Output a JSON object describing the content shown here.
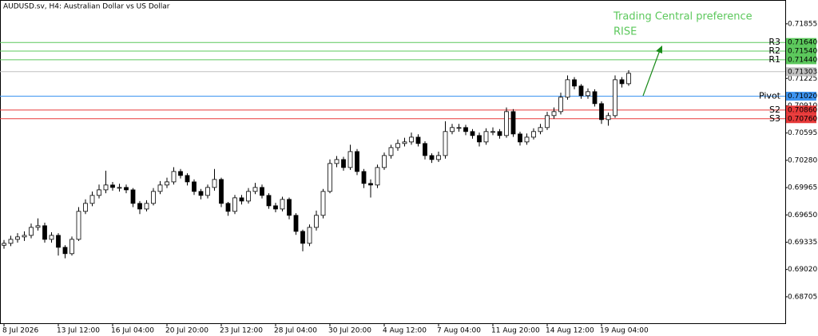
{
  "chart_data": {
    "type": "candlestick",
    "title": "AUDUSD.sv, H4:  Australian Dollar vs US Dollar",
    "annotations": [
      "Trading Central preference",
      "RISE"
    ],
    "annotation_color": "#5cc85c",
    "categories": [
      "8 Jul 2026",
      null,
      null,
      null,
      null,
      null,
      null,
      null,
      "13 Jul 12:00",
      null,
      null,
      null,
      null,
      null,
      null,
      null,
      "16 Jul 04:00",
      null,
      null,
      null,
      null,
      null,
      null,
      null,
      "20 Jul 20:00",
      null,
      null,
      null,
      null,
      null,
      null,
      null,
      "23 Jul 12:00",
      null,
      null,
      null,
      null,
      null,
      null,
      null,
      "28 Jul 04:00",
      null,
      null,
      null,
      null,
      null,
      null,
      null,
      "30 Jul 20:00",
      null,
      null,
      null,
      null,
      null,
      null,
      null,
      "4 Aug 12:00",
      null,
      null,
      null,
      null,
      null,
      null,
      null,
      "7 Aug 04:00",
      null,
      null,
      null,
      null,
      null,
      null,
      null,
      "11 Aug 20:00",
      null,
      null,
      null,
      null,
      null,
      null,
      null,
      "14 Aug 12:00",
      null,
      null,
      null,
      null,
      null,
      null,
      null,
      "19 Aug 04:00",
      null,
      null,
      null,
      null
    ],
    "open": [
      0.693,
      0.69322,
      0.69368,
      0.69396,
      0.69414,
      0.69506,
      0.69525,
      0.69368,
      0.69414,
      0.69276,
      0.69203,
      0.69368,
      0.69691,
      0.69783,
      0.69875,
      0.69939,
      0.69995,
      0.69967,
      0.69967,
      0.69939,
      0.69783,
      0.69718,
      0.69783,
      0.69921,
      0.69995,
      0.70031,
      0.70151,
      0.70105,
      0.70031,
      0.69921,
      0.69875,
      0.69967,
      0.70059,
      0.69783,
      0.69691,
      0.69847,
      0.6981,
      0.69921,
      0.69967,
      0.69875,
      0.69755,
      0.69718,
      0.69829,
      0.69645,
      0.6946,
      0.69322,
      0.69506,
      0.69645,
      0.69921,
      0.70243,
      0.70289,
      0.70197,
      0.70381,
      0.70151,
      0.70013,
      0.69995,
      0.70197,
      0.70335,
      0.70427,
      0.70474,
      0.70492,
      0.70547,
      0.70474,
      0.70335,
      0.70289,
      0.70335,
      0.70612,
      0.70658,
      0.70658,
      0.70612,
      0.70566,
      0.70492,
      0.70612,
      0.70612,
      0.70566,
      0.70842,
      0.70584,
      0.70492,
      0.70547,
      0.70612,
      0.70658,
      0.70796,
      0.70842,
      0.71008,
      0.7121,
      0.71137,
      0.71026,
      0.71072,
      0.70934,
      0.7075,
      0.70796,
      0.7121,
      0.71164
    ],
    "high": [
      0.6936,
      0.6941,
      0.6944,
      0.6946,
      0.6955,
      0.6961,
      0.6956,
      0.6945,
      0.6944,
      0.693,
      0.694,
      0.6974,
      0.6983,
      0.6992,
      0.7,
      0.7016,
      0.7003,
      0.7001,
      0.7,
      0.6996,
      0.6981,
      0.6982,
      0.6996,
      0.7004,
      0.7008,
      0.702,
      0.7018,
      0.7013,
      0.7006,
      0.6995,
      0.7,
      0.7018,
      0.7008,
      0.698,
      0.6988,
      0.6988,
      0.6996,
      0.7002,
      0.7,
      0.699,
      0.6979,
      0.6986,
      0.6985,
      0.6967,
      0.6948,
      0.6954,
      0.697,
      0.6995,
      0.7029,
      0.7033,
      0.7032,
      0.7046,
      0.7041,
      0.7018,
      0.7006,
      0.7023,
      0.7037,
      0.7046,
      0.7052,
      0.7054,
      0.706,
      0.7058,
      0.705,
      0.7036,
      0.7038,
      0.7073,
      0.707,
      0.707,
      0.7069,
      0.7064,
      0.706,
      0.7065,
      0.7066,
      0.7064,
      0.7089,
      0.7087,
      0.7061,
      0.7059,
      0.7065,
      0.707,
      0.7084,
      0.7089,
      0.7106,
      0.7126,
      0.7124,
      0.7116,
      0.7111,
      0.711,
      0.7096,
      0.7083,
      0.7126,
      0.7124,
      0.7132
    ],
    "low": [
      0.6926,
      0.6929,
      0.6933,
      0.6935,
      0.6938,
      0.6947,
      0.6933,
      0.6933,
      0.6918,
      0.6915,
      0.6918,
      0.6935,
      0.6966,
      0.6975,
      0.6984,
      0.699,
      0.6993,
      0.6992,
      0.699,
      0.6974,
      0.6966,
      0.6969,
      0.6976,
      0.6989,
      0.6996,
      0.7,
      0.7007,
      0.6999,
      0.6988,
      0.6983,
      0.6984,
      0.6993,
      0.6974,
      0.6964,
      0.6966,
      0.6977,
      0.6978,
      0.6989,
      0.6984,
      0.6972,
      0.6968,
      0.6969,
      0.696,
      0.6942,
      0.6923,
      0.6929,
      0.6947,
      0.6961,
      0.699,
      0.702,
      0.7016,
      0.7017,
      0.7011,
      0.6996,
      0.6985,
      0.6996,
      0.7017,
      0.703,
      0.7039,
      0.7044,
      0.7046,
      0.7044,
      0.7029,
      0.7025,
      0.7026,
      0.703,
      0.7058,
      0.7061,
      0.7057,
      0.7053,
      0.7044,
      0.7046,
      0.7057,
      0.7053,
      0.7054,
      0.7055,
      0.7045,
      0.7046,
      0.7052,
      0.7058,
      0.7063,
      0.7076,
      0.7081,
      0.7098,
      0.711,
      0.7099,
      0.7099,
      0.709,
      0.707,
      0.7068,
      0.7077,
      0.7112,
      0.7114
    ],
    "close": [
      0.69322,
      0.69368,
      0.69396,
      0.69414,
      0.69506,
      0.69525,
      0.69368,
      0.69414,
      0.69276,
      0.69203,
      0.69368,
      0.69691,
      0.69783,
      0.69875,
      0.69939,
      0.69995,
      0.69967,
      0.69967,
      0.69939,
      0.69783,
      0.69718,
      0.69783,
      0.69921,
      0.69995,
      0.70031,
      0.70151,
      0.70105,
      0.70031,
      0.69921,
      0.69875,
      0.69967,
      0.70059,
      0.69783,
      0.69691,
      0.69847,
      0.6981,
      0.69921,
      0.69967,
      0.69875,
      0.69755,
      0.69718,
      0.69829,
      0.69645,
      0.6946,
      0.69322,
      0.69506,
      0.69645,
      0.69921,
      0.70243,
      0.70289,
      0.70197,
      0.70381,
      0.70151,
      0.70013,
      0.69995,
      0.70197,
      0.70335,
      0.70427,
      0.70474,
      0.70492,
      0.70547,
      0.70474,
      0.70335,
      0.70289,
      0.70335,
      0.70612,
      0.70658,
      0.70658,
      0.70612,
      0.70566,
      0.70492,
      0.70612,
      0.70612,
      0.70566,
      0.70842,
      0.70584,
      0.70492,
      0.70547,
      0.70612,
      0.70658,
      0.70796,
      0.70842,
      0.71008,
      0.7121,
      0.71137,
      0.71026,
      0.71072,
      0.70934,
      0.7075,
      0.70796,
      0.7121,
      0.71164,
      0.71284
    ],
    "up_color": "#ffffff",
    "down_color": "#000000",
    "ylim": [
      0.684,
      0.7213
    ],
    "yticks": [
      0.71855,
      0.71225,
      {
        "value": 0.7091,
        "label": "0.70910"
      },
      0.70595,
      {
        "value": 0.7028,
        "label": "0.70280"
      },
      0.69965,
      {
        "value": 0.6965,
        "label": "0.69650"
      },
      0.69335,
      {
        "value": 0.6902,
        "label": "0.69020"
      },
      0.68705
    ],
    "levels": [
      {
        "name": "R3",
        "value": 0.7164,
        "label": "0.71640",
        "color": "#5cc85c"
      },
      {
        "name": "R2",
        "value": 0.7154,
        "label": "0.71540",
        "color": "#5cc85c"
      },
      {
        "name": "R1",
        "value": 0.7144,
        "label": "0.71440",
        "color": "#5cc85c"
      },
      {
        "name": "Pivot",
        "value": 0.7102,
        "label": "0.71020",
        "color": "#3d94f0"
      },
      {
        "name": "S2",
        "value": 0.7086,
        "label": "0.70860",
        "color": "#e83a3a"
      },
      {
        "name": "S3",
        "value": 0.7076,
        "label": "0.70760",
        "color": "#e83a3a"
      }
    ],
    "current_price": {
      "value": 0.71303,
      "label": "0.71303",
      "color": "#c0c0c0"
    }
  }
}
